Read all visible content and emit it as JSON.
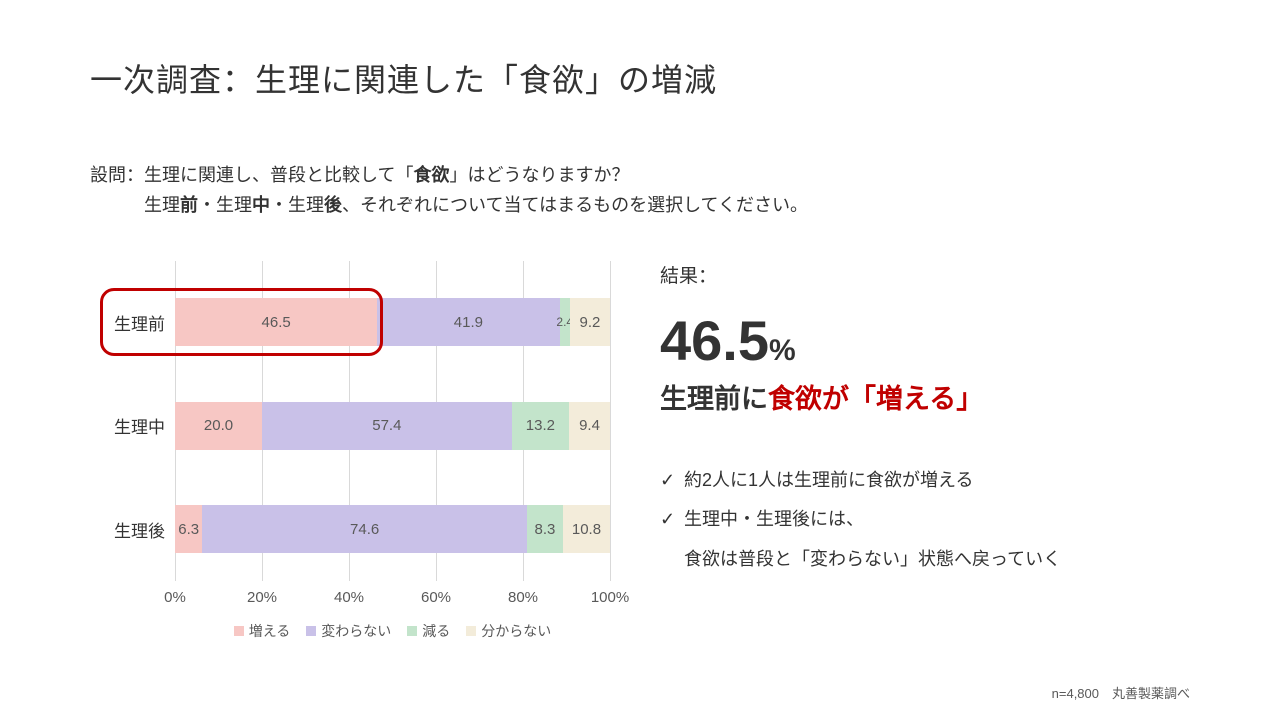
{
  "title": "一次調査：生理に関連した「食欲」の増減",
  "question_pre": "設問：生理に関連し、普段と比較して「",
  "question_bold1": "食欲",
  "question_mid": "」はどうなりますか？\n　　　生理",
  "question_bold2": "前",
  "question_mid2": "・生理",
  "question_bold3": "中",
  "question_mid3": "・生理",
  "question_bold4": "後",
  "question_post": "、それぞれについて当てはまるものを選択してください。",
  "chart": {
    "type": "stacked-bar-horizontal",
    "categories": [
      "生理前",
      "生理中",
      "生理後"
    ],
    "series_labels": [
      "増える",
      "変わらない",
      "減る",
      "分からない"
    ],
    "series_colors": [
      "#f7c7c4",
      "#c9c1e8",
      "#c3e4cb",
      "#f3ecda"
    ],
    "values": [
      [
        46.5,
        41.9,
        2.4,
        9.2
      ],
      [
        20.0,
        57.4,
        13.2,
        9.4
      ],
      [
        6.3,
        74.6,
        8.3,
        10.8
      ]
    ],
    "xlim": [
      0,
      100
    ],
    "xtick_step": 20,
    "xtick_labels": [
      "0%",
      "20%",
      "40%",
      "60%",
      "80%",
      "100%"
    ],
    "grid_color": "#d9d9d9",
    "label_color": "#595959",
    "label_fontsize": 15,
    "highlight": {
      "row": 0,
      "seg": 0,
      "border_color": "#c00000",
      "border_width": 3,
      "border_radius": 14
    }
  },
  "result": {
    "head": "結果：",
    "big_number": "46.5",
    "pct": "%",
    "headline_pre": "生理前に",
    "headline_red": "食欲が「増える」",
    "red_color": "#c00000",
    "bullets": [
      "約2人に1人は生理前に食欲が増える",
      "生理中・生理後には、"
    ],
    "bullet2_sub": "食欲は普段と「変わらない」状態へ戻っていく"
  },
  "footer": "n=4,800　丸善製薬調べ"
}
